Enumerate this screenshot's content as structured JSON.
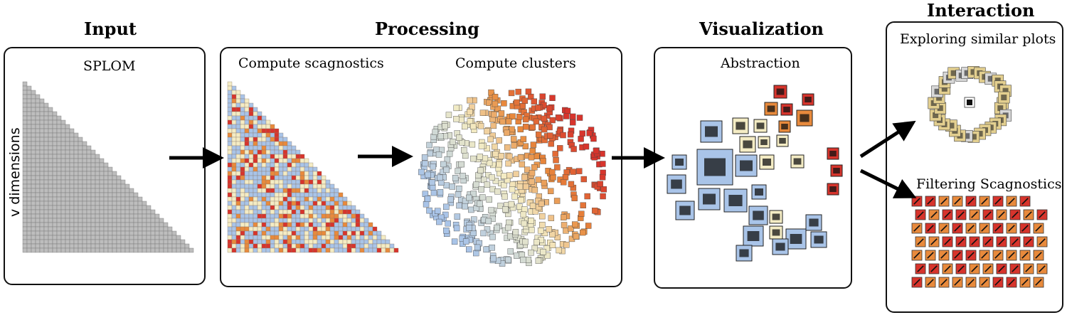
{
  "stages": {
    "input": "Input",
    "processing": "Processing",
    "visualization": "Visualization",
    "interaction": "Interaction"
  },
  "input_panel": {
    "title": "SPLOM",
    "axis_label": "v dimensions"
  },
  "processing_panel": {
    "scagnostics_title": "Compute scagnostics",
    "clusters_title": "Compute clusters"
  },
  "visualization_panel": {
    "title": "Abstraction"
  },
  "interaction_panel": {
    "similar_title": "Exploring similar plots",
    "filter_title": "Filtering Scagnostics"
  },
  "colors": {
    "border": "#111111",
    "splom_gray": "#bdbdbd",
    "blue": "#a9c4e8",
    "cream": "#f4ecc4",
    "orange": "#e88a3c",
    "red": "#d7342c",
    "tan": "#e3cf8f"
  }
}
